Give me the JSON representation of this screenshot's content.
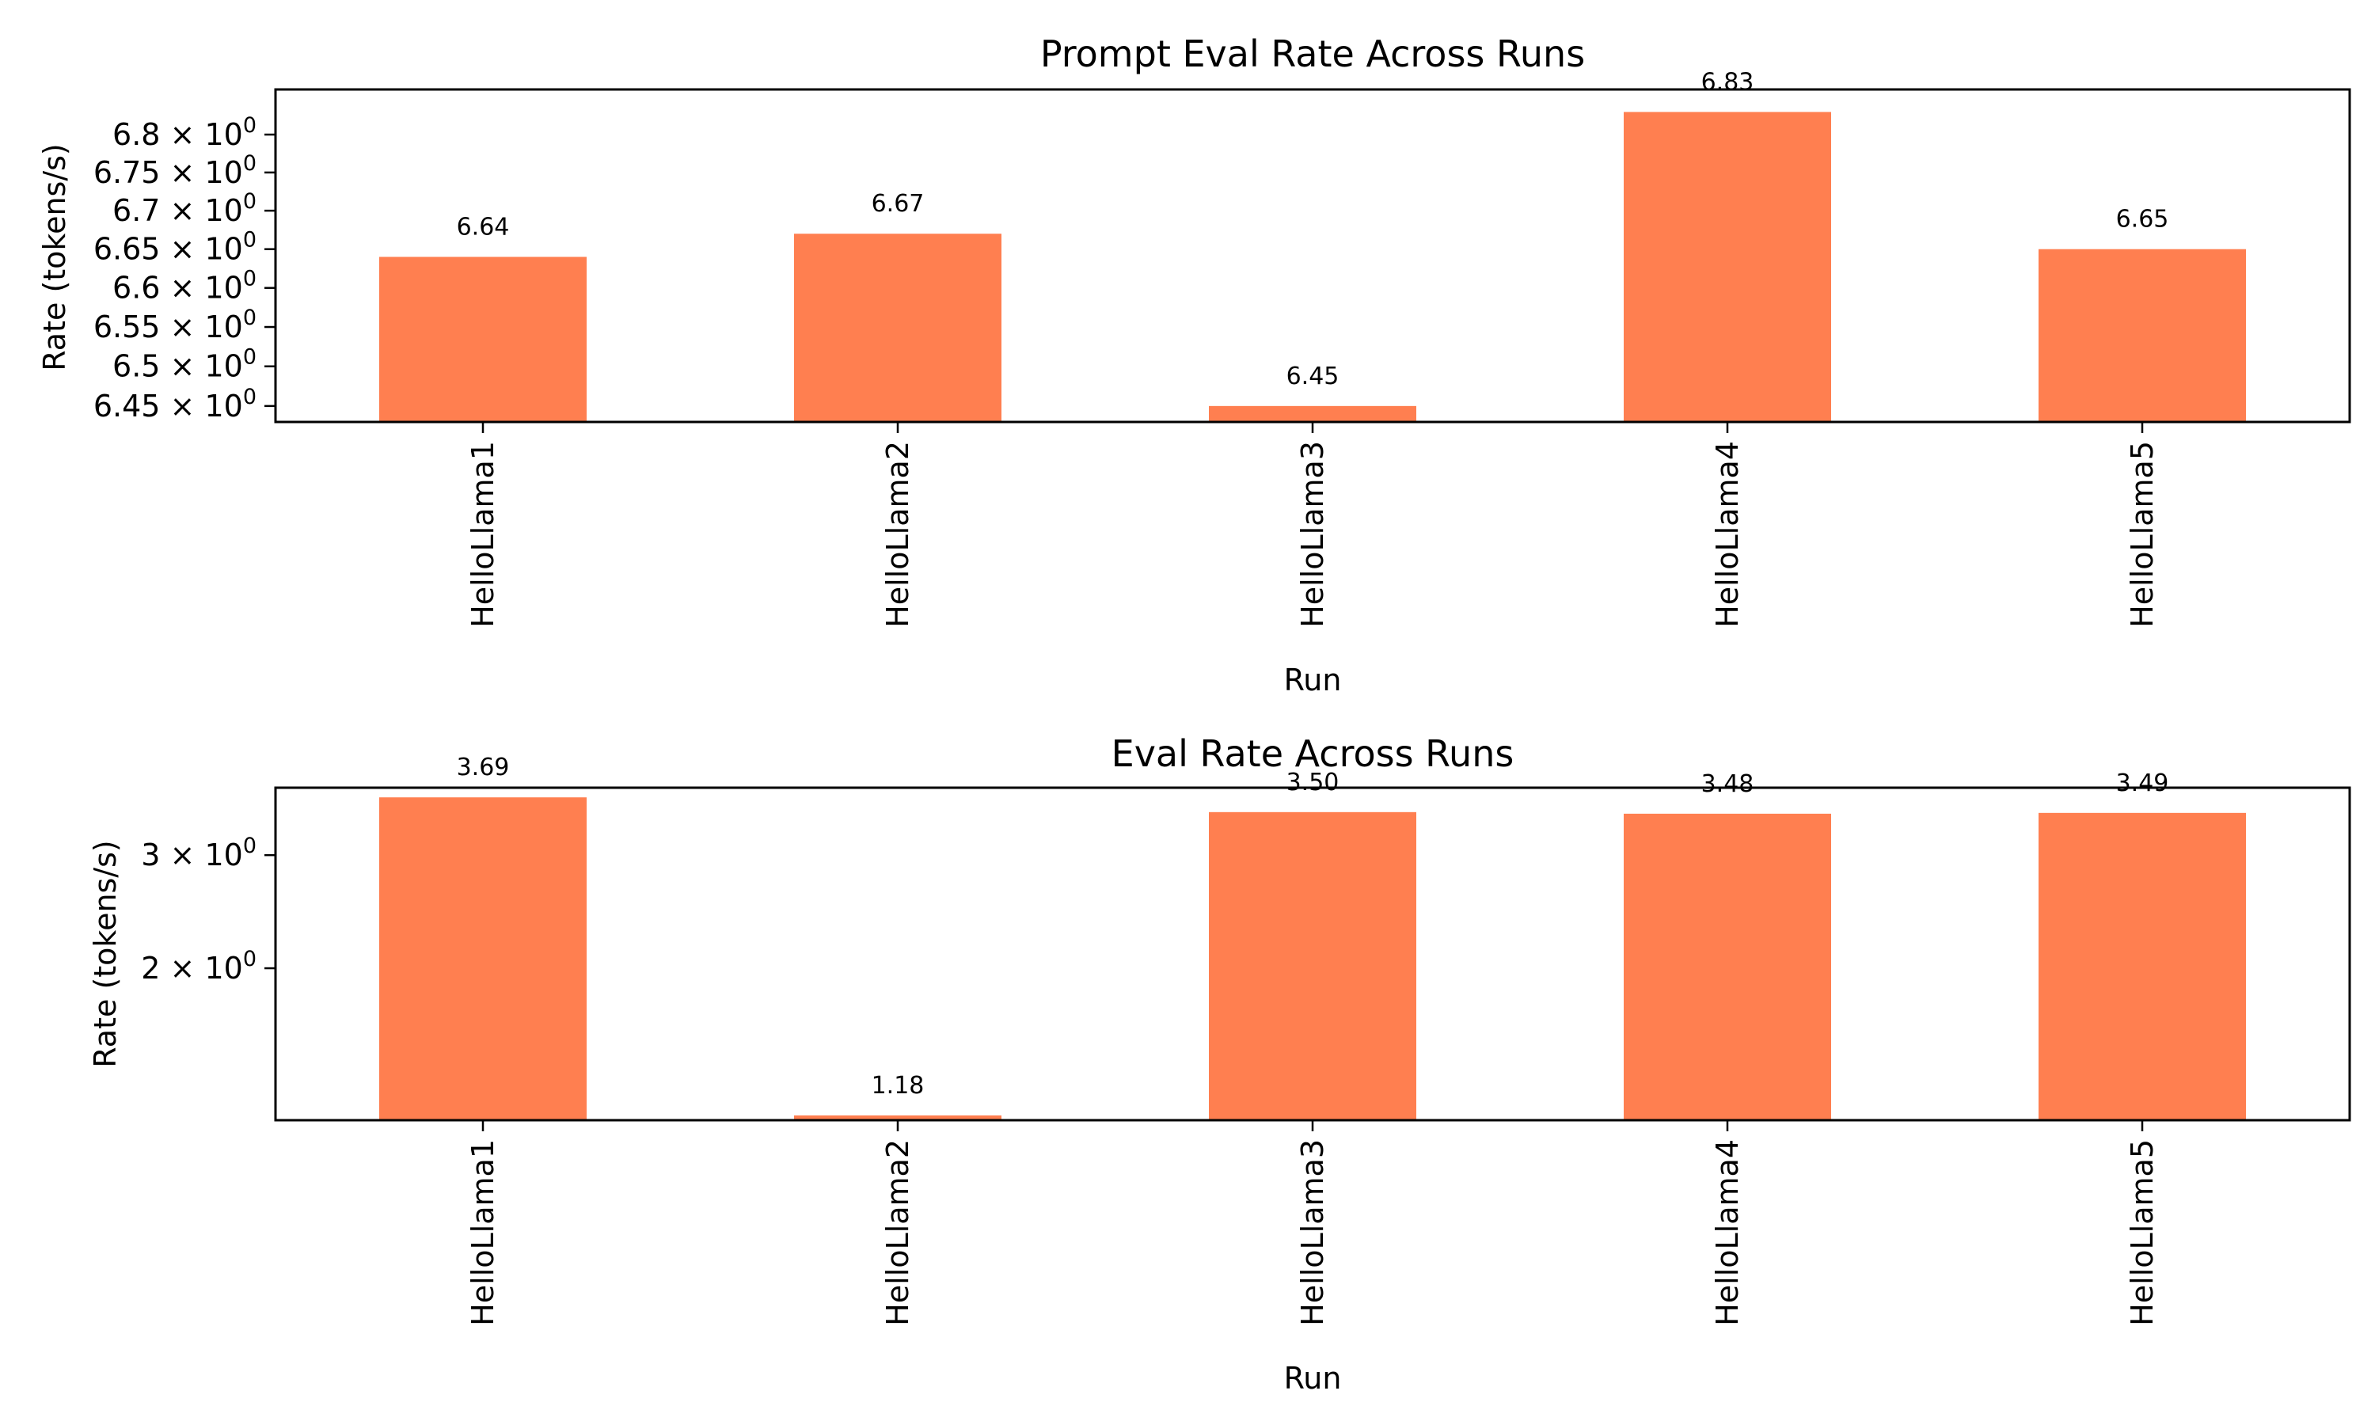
{
  "chart_data": [
    {
      "type": "bar",
      "title": "Prompt Eval Rate Across Runs",
      "xlabel": "Run",
      "ylabel": "Rate (tokens/s)",
      "yscale": "log",
      "ylim": [
        6.43,
        6.86
      ],
      "categories": [
        "HelloLlama1",
        "HelloLlama2",
        "HelloLlama3",
        "HelloLlama4",
        "HelloLlama5"
      ],
      "values": [
        6.64,
        6.67,
        6.45,
        6.83,
        6.65
      ],
      "value_labels": [
        "6.64",
        "6.67",
        "6.45",
        "6.83",
        "6.65"
      ],
      "yticks": [
        {
          "value": 6.45,
          "mantissa": "6.45",
          "exp": "0"
        },
        {
          "value": 6.5,
          "mantissa": "6.5",
          "exp": "0"
        },
        {
          "value": 6.55,
          "mantissa": "6.55",
          "exp": "0"
        },
        {
          "value": 6.6,
          "mantissa": "6.6",
          "exp": "0"
        },
        {
          "value": 6.65,
          "mantissa": "6.65",
          "exp": "0"
        },
        {
          "value": 6.7,
          "mantissa": "6.7",
          "exp": "0"
        },
        {
          "value": 6.75,
          "mantissa": "6.75",
          "exp": "0"
        },
        {
          "value": 6.8,
          "mantissa": "6.8",
          "exp": "0"
        }
      ],
      "bar_color": "#ff7f50",
      "grid": false,
      "legend": "none"
    },
    {
      "type": "bar",
      "title": "Eval Rate Across Runs",
      "xlabel": "Run",
      "ylabel": "Rate (tokens/s)",
      "yscale": "log",
      "ylim": [
        1.16,
        3.82
      ],
      "categories": [
        "HelloLlama1",
        "HelloLlama2",
        "HelloLlama3",
        "HelloLlama4",
        "HelloLlama5"
      ],
      "values": [
        3.69,
        1.18,
        3.5,
        3.48,
        3.49
      ],
      "value_labels": [
        "3.69",
        "1.18",
        "3.50",
        "3.48",
        "3.49"
      ],
      "yticks": [
        {
          "value": 2,
          "mantissa": "2",
          "exp": "0"
        },
        {
          "value": 3,
          "mantissa": "3",
          "exp": "0"
        }
      ],
      "bar_color": "#ff7f50",
      "grid": false,
      "legend": "none"
    }
  ]
}
